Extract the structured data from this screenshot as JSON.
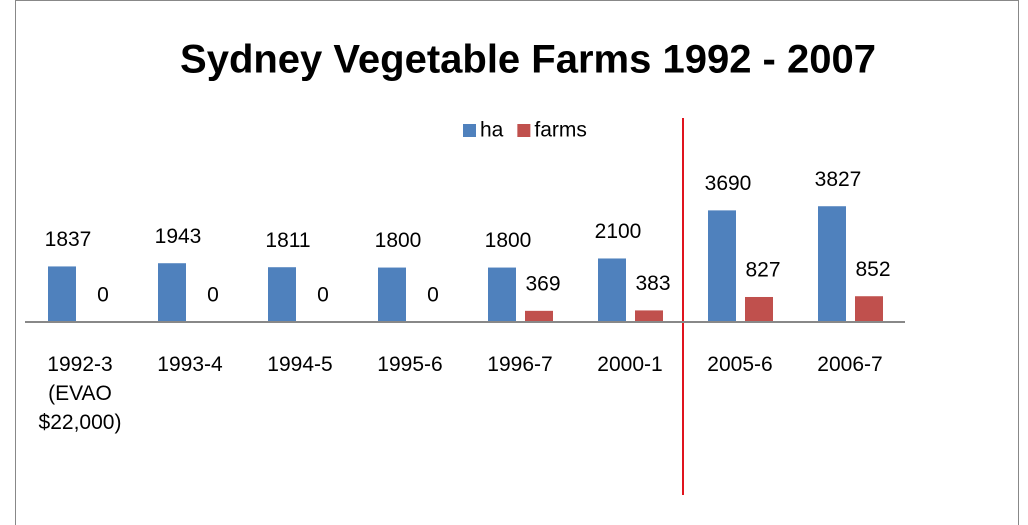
{
  "chart_data": {
    "type": "bar",
    "title": "Sydney Vegetable Farms 1992 - 2007",
    "categories": [
      "1992-3 (EVAO $22,000)",
      "1993-4",
      "1994-5",
      "1995-6",
      "1996-7",
      "2000-1",
      "2005-6",
      "2006-7"
    ],
    "series": [
      {
        "name": "ha",
        "color": "#4f81bd",
        "values": [
          1837,
          1943,
          1811,
          1800,
          1800,
          2100,
          3690,
          3827
        ]
      },
      {
        "name": "farms",
        "color": "#c0504d",
        "values": [
          0,
          0,
          0,
          0,
          369,
          383,
          827,
          852
        ]
      }
    ],
    "ylim": [
      0,
      4000
    ],
    "legend": "top"
  }
}
